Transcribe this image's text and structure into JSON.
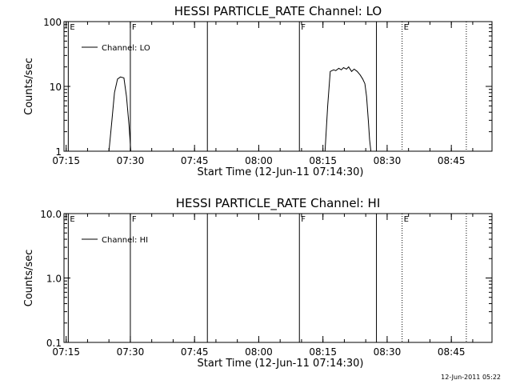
{
  "footer": {
    "timestamp": "12-Jun-2011 05:22"
  },
  "chart_data": [
    {
      "type": "line",
      "title": "HESSI PARTICLE_RATE Channel: LO",
      "xlabel": "Start Time (12-Jun-11 07:14:30)",
      "ylabel": "Counts/sec",
      "yscale": "log",
      "ylim": [
        1,
        100
      ],
      "xlim_minutes": [
        0,
        100
      ],
      "xticks": [
        "07:15",
        "07:30",
        "07:45",
        "08:00",
        "08:15",
        "08:30",
        "08:45"
      ],
      "yticks": [
        "1",
        "10",
        "100"
      ],
      "legend": {
        "label": "Channel: LO",
        "position": "top-left"
      },
      "markers": [
        {
          "t": 1,
          "label": "E",
          "style": "solid"
        },
        {
          "t": 15.5,
          "label": "F",
          "style": "solid"
        },
        {
          "t": 33.5,
          "label": "",
          "style": "solid"
        },
        {
          "t": 55,
          "label": "F",
          "style": "solid"
        },
        {
          "t": 73,
          "label": "",
          "style": "solid"
        },
        {
          "t": 79,
          "label": "E",
          "style": "dotted"
        },
        {
          "t": 94,
          "label": "",
          "style": "dotted"
        }
      ],
      "series": [
        {
          "values": [
            [
              10.5,
              1
            ],
            [
              11.2,
              3
            ],
            [
              11.8,
              8
            ],
            [
              12.5,
              13
            ],
            [
              13.2,
              14
            ],
            [
              14,
              13.5
            ],
            [
              14.6,
              7
            ],
            [
              15.2,
              2.5
            ],
            [
              15.6,
              1
            ]
          ]
        },
        {
          "values": [
            [
              61,
              1
            ],
            [
              61.6,
              5
            ],
            [
              62.2,
              17
            ],
            [
              63,
              18
            ],
            [
              63.5,
              17.5
            ],
            [
              64.2,
              19
            ],
            [
              64.8,
              18
            ],
            [
              65.3,
              19.5
            ],
            [
              66,
              18.5
            ],
            [
              66.5,
              20
            ],
            [
              67.2,
              17
            ],
            [
              67.8,
              18.5
            ],
            [
              68.5,
              17
            ],
            [
              69.2,
              15
            ],
            [
              69.8,
              13
            ],
            [
              70.3,
              11
            ],
            [
              70.7,
              7
            ],
            [
              71.1,
              3
            ],
            [
              71.4,
              1.5
            ],
            [
              71.7,
              1
            ]
          ]
        }
      ]
    },
    {
      "type": "line",
      "title": "HESSI PARTICLE_RATE Channel: HI",
      "xlabel": "Start Time (12-Jun-11 07:14:30)",
      "ylabel": "Counts/sec",
      "yscale": "log",
      "ylim": [
        0.1,
        10
      ],
      "xlim_minutes": [
        0,
        100
      ],
      "xticks": [
        "07:15",
        "07:30",
        "07:45",
        "08:00",
        "08:15",
        "08:30",
        "08:45"
      ],
      "yticks": [
        "0.1",
        "1.0",
        "10.0"
      ],
      "legend": {
        "label": "Channel: HI",
        "position": "top-left"
      },
      "markers": [
        {
          "t": 1,
          "label": "E",
          "style": "solid"
        },
        {
          "t": 15.5,
          "label": "F",
          "style": "solid"
        },
        {
          "t": 33.5,
          "label": "",
          "style": "solid"
        },
        {
          "t": 55,
          "label": "F",
          "style": "solid"
        },
        {
          "t": 73,
          "label": "",
          "style": "solid"
        },
        {
          "t": 79,
          "label": "E",
          "style": "dotted"
        },
        {
          "t": 94,
          "label": "",
          "style": "dotted"
        }
      ],
      "series": [
        {
          "values": []
        }
      ]
    }
  ]
}
